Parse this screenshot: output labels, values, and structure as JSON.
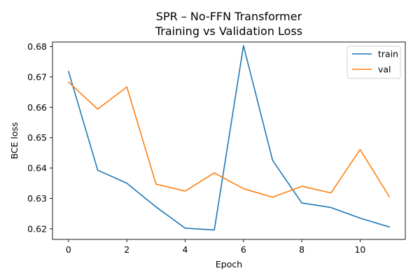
{
  "chart_data": {
    "type": "line",
    "title": [
      "SPR – No-FFN Transformer",
      "Training vs Validation Loss"
    ],
    "xlabel": "Epoch",
    "ylabel": "BCE loss",
    "xlim": [
      -0.55,
      11.55
    ],
    "ylim": [
      0.6165,
      0.6815
    ],
    "xticks": [
      0,
      2,
      4,
      6,
      8,
      10
    ],
    "yticks": [
      0.62,
      0.63,
      0.64,
      0.65,
      0.66,
      0.67,
      0.68
    ],
    "xtick_labels": [
      "0",
      "2",
      "4",
      "6",
      "8",
      "10"
    ],
    "ytick_labels": [
      "0.62",
      "0.63",
      "0.64",
      "0.65",
      "0.66",
      "0.67",
      "0.68"
    ],
    "grid": false,
    "legend_position": "top-right",
    "x": [
      0,
      1,
      2,
      3,
      4,
      5,
      6,
      7,
      8,
      9,
      10,
      11
    ],
    "series": [
      {
        "name": "train",
        "color": "#1f77b4",
        "values": [
          0.6718,
          0.6393,
          0.635,
          0.6272,
          0.6202,
          0.6196,
          0.6803,
          0.6425,
          0.6285,
          0.627,
          0.6235,
          0.6206
        ]
      },
      {
        "name": "val",
        "color": "#ff7f0e",
        "values": [
          0.6683,
          0.6594,
          0.6667,
          0.6347,
          0.6324,
          0.6384,
          0.6332,
          0.6304,
          0.634,
          0.6318,
          0.6461,
          0.6306
        ]
      }
    ]
  }
}
